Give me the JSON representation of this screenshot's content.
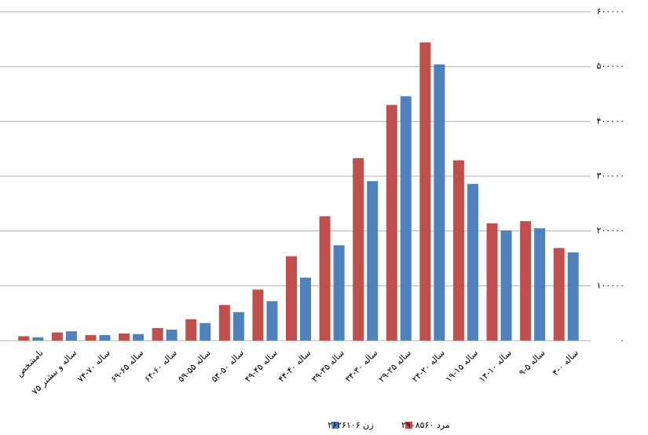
{
  "chart_data": {
    "type": "bar",
    "categories": [
      "نامشخص",
      "۷۵ ساله و بیشتر",
      "۷۴-۷۰ ساله",
      "۶۹-۶۵ ساله",
      "۶۴-۶۰ ساله",
      "۵۹-۵۵ ساله",
      "۵۴-۵۰ ساله",
      "۴۹-۴۵ ساله",
      "۴۴-۴۰ ساله",
      "۳۹-۳۵ ساله",
      "۳۴-۳۰ ساله",
      "۲۹-۲۵ ساله",
      "۲۴-۲۰ ساله",
      "۱۹-۱۵ ساله",
      "۱۴-۱۰ ساله",
      "۹-۵ ساله",
      "۴-۰ ساله"
    ],
    "series": [
      {
        "name": "مرد ۲۹۰۸۵۶۰",
        "color": "#c0504d",
        "values": [
          8000,
          15000,
          10000,
          13000,
          23000,
          39000,
          65000,
          93000,
          154000,
          227000,
          333000,
          430000,
          544000,
          329000,
          214000,
          218000,
          169000
        ]
      },
      {
        "name": "زن ۲۶۲۶۱۰۶",
        "color": "#4f81bd",
        "values": [
          6000,
          17000,
          10000,
          12000,
          20000,
          32000,
          52000,
          72000,
          115000,
          174000,
          291000,
          446000,
          504000,
          286000,
          201000,
          205000,
          161000
        ]
      }
    ],
    "ylim": [
      0,
      600000
    ],
    "yticks": [
      {
        "value": 0,
        "label": "۰"
      },
      {
        "value": 100000,
        "label": "۱۰۰۰۰۰"
      },
      {
        "value": 200000,
        "label": "۲۰۰۰۰۰"
      },
      {
        "value": 300000,
        "label": "۳۰۰۰۰۰"
      },
      {
        "value": 400000,
        "label": "۴۰۰۰۰۰"
      },
      {
        "value": 500000,
        "label": "۵۰۰۰۰۰"
      },
      {
        "value": 600000,
        "label": "۶۰۰۰۰۰"
      }
    ],
    "grid": true
  }
}
